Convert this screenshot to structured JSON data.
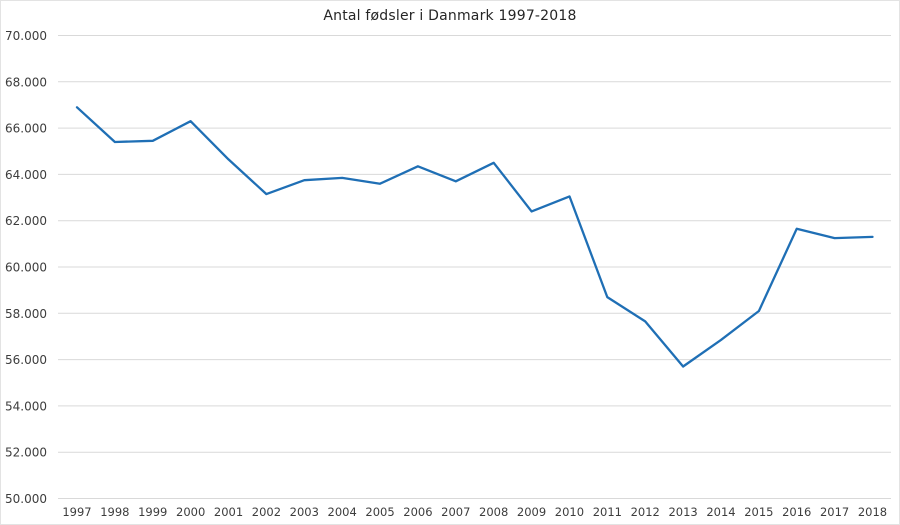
{
  "chart": {
    "title": "Antal fødsler i Danmark 1997-2018"
  },
  "chart_data": {
    "type": "line",
    "title": "Antal fødsler i Danmark 1997-2018",
    "categories": [
      "1997",
      "1998",
      "1999",
      "2000",
      "2001",
      "2002",
      "2003",
      "2004",
      "2005",
      "2006",
      "2007",
      "2008",
      "2009",
      "2010",
      "2011",
      "2012",
      "2013",
      "2014",
      "2015",
      "2016",
      "2017",
      "2018"
    ],
    "series": [
      {
        "name": "Antal fødsler",
        "color": "#1f6fb5",
        "values": [
          66900,
          65400,
          65450,
          66300,
          64650,
          63150,
          63750,
          63850,
          63600,
          64350,
          63700,
          64500,
          62400,
          63050,
          58700,
          57650,
          55700,
          56850,
          58100,
          61650,
          61250,
          61300
        ]
      }
    ],
    "xlabel": "",
    "ylabel": "",
    "ylim": [
      50000,
      70000
    ],
    "yticks": [
      {
        "value": 70000,
        "label": "70.000"
      },
      {
        "value": 68000,
        "label": "68.000"
      },
      {
        "value": 66000,
        "label": "66.000"
      },
      {
        "value": 64000,
        "label": "64.000"
      },
      {
        "value": 62000,
        "label": "62.000"
      },
      {
        "value": 60000,
        "label": "60.000"
      },
      {
        "value": 58000,
        "label": "58.000"
      },
      {
        "value": 56000,
        "label": "56.000"
      },
      {
        "value": 54000,
        "label": "54.000"
      },
      {
        "value": 52000,
        "label": "52.000"
      },
      {
        "value": 50000,
        "label": "50.000"
      }
    ],
    "grid": "horizontal",
    "gridline_color": "#d9d9d9",
    "tick_label_color": "#3d3d3d",
    "title_color": "#262626",
    "background_color": "#ffffff",
    "legend": "none"
  }
}
